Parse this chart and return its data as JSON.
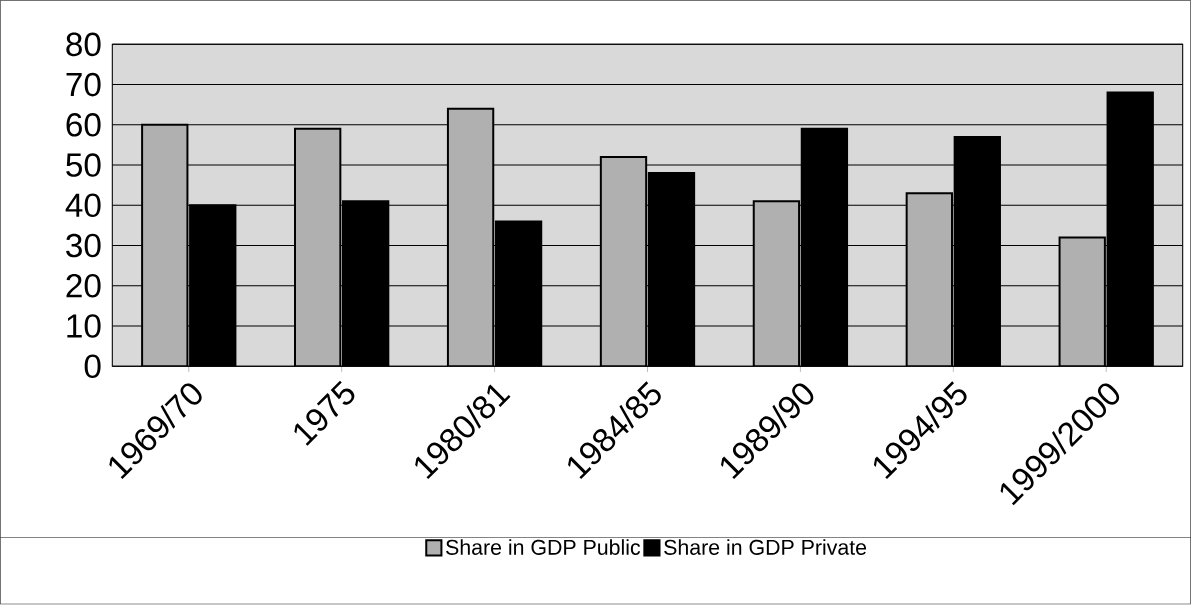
{
  "chart_data": {
    "type": "bar",
    "categories": [
      "1969/70",
      "1975",
      "1980/81",
      "1984/85",
      "1989/90",
      "1994/95",
      "1999/2000"
    ],
    "series": [
      {
        "name": "Share in GDP Public",
        "color": "#b0b0b0",
        "values": [
          60,
          59,
          64,
          52,
          41,
          43,
          32
        ]
      },
      {
        "name": "Share in GDP Private",
        "color": "#000000",
        "values": [
          40,
          41,
          36,
          48,
          59,
          57,
          68
        ]
      }
    ],
    "ylim": [
      0,
      80
    ],
    "yticks": [
      0,
      10,
      20,
      30,
      40,
      50,
      60,
      70,
      80
    ],
    "grid": "y",
    "legend": "bottom"
  }
}
